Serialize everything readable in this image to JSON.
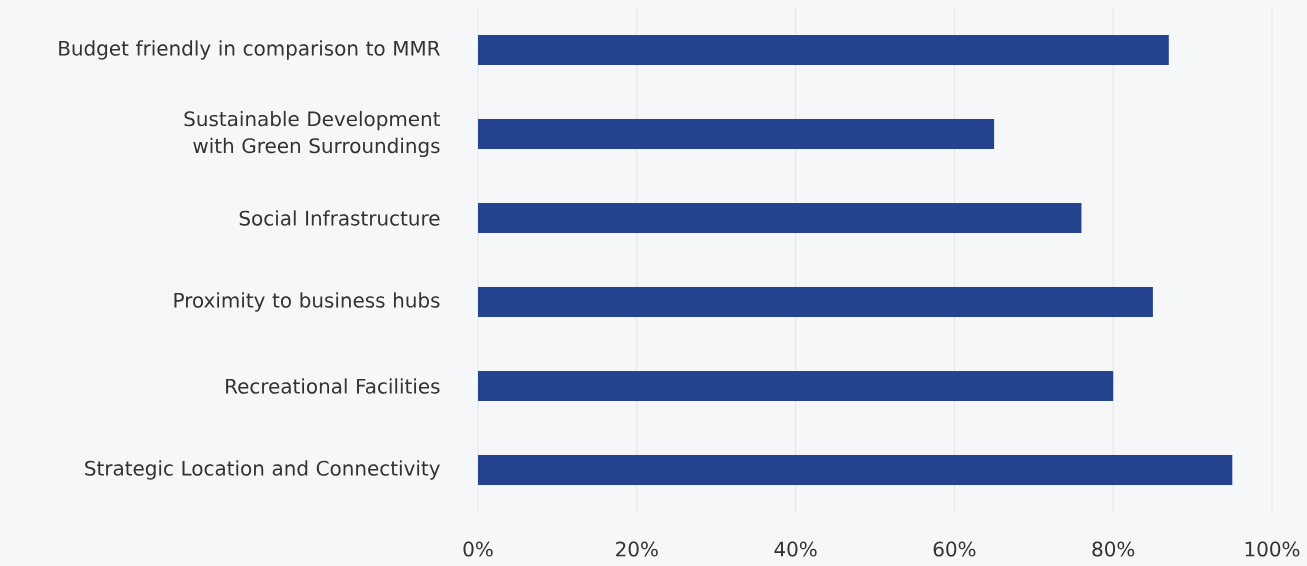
{
  "chart_data": {
    "type": "bar",
    "orientation": "horizontal",
    "categories": [
      "Budget friendly in comparison to MMR",
      "Sustainable Development with Green Surroundings",
      "Social Infrastructure",
      "Proximity to business hubs",
      "Recreational Facilities",
      "Strategic Location and Connectivity"
    ],
    "values": [
      87,
      65,
      76,
      85,
      80,
      95
    ],
    "color": "#25448f",
    "xlim": [
      0,
      100
    ],
    "xticks": [
      {
        "value": 0,
        "label": "0%"
      },
      {
        "value": 20,
        "label": "20%"
      },
      {
        "value": 40,
        "label": "40%"
      },
      {
        "value": 60,
        "label": "60%"
      },
      {
        "value": 80,
        "label": "80%"
      },
      {
        "value": 100,
        "label": "100%"
      }
    ],
    "grid": "x"
  }
}
